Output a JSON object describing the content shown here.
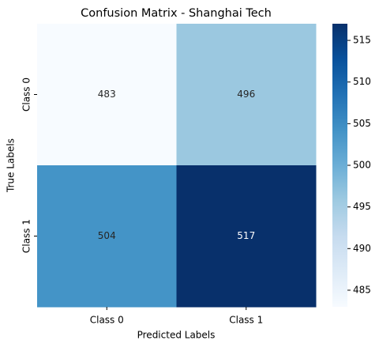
{
  "chart_data": {
    "type": "heatmap",
    "title": "Confusion Matrix - Shanghai Tech",
    "xlabel": "Predicted Labels",
    "ylabel": "True Labels",
    "x_categories": [
      "Class 0",
      "Class 1"
    ],
    "y_categories": [
      "Class 0",
      "Class 1"
    ],
    "values": [
      [
        483,
        496
      ],
      [
        504,
        517
      ]
    ],
    "clim": [
      483,
      517
    ],
    "cticks": [
      485,
      490,
      495,
      500,
      505,
      510,
      515
    ],
    "colormap": [
      "#f7fbff",
      "#deebf7",
      "#c6dbef",
      "#9ecae1",
      "#6baed6",
      "#4292c6",
      "#2171b5",
      "#08519c",
      "#08306b"
    ]
  }
}
